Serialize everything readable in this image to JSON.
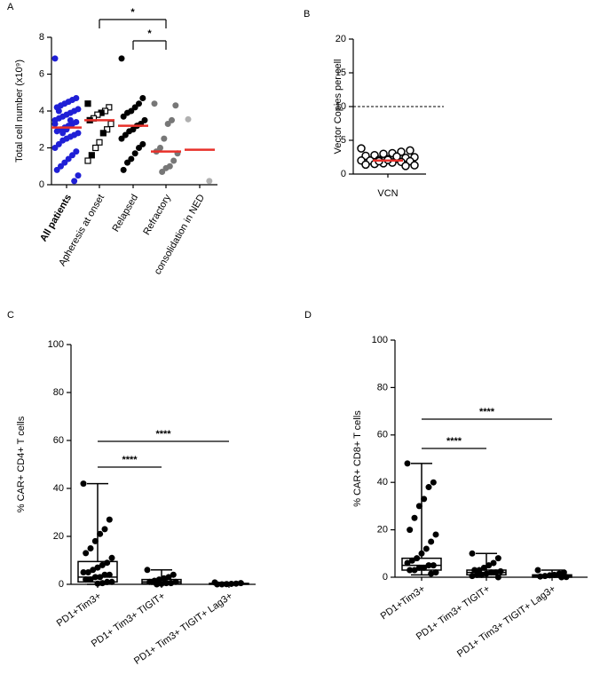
{
  "chart_data": [
    {
      "type": "dot",
      "panel": "A",
      "ylabel": "Total cell number (x10⁹)",
      "categories": [
        "All patients",
        "Apheresis at onset",
        "Relapsed",
        "Refractory",
        "consolidation in NED"
      ],
      "ylim": [
        0,
        8
      ],
      "yticks": [
        0,
        2,
        4,
        6,
        8
      ],
      "groups": [
        {
          "color": "#1f1fd6",
          "marker": "circle",
          "median": 3.1,
          "values": [
            6.85,
            4.7,
            4.6,
            4.5,
            4.4,
            4.3,
            4.2,
            4.1,
            4.0,
            3.9,
            3.8,
            3.7,
            3.6,
            3.5,
            3.4,
            3.3,
            3.2,
            3.1,
            3.0,
            2.9,
            2.8,
            2.7,
            2.6,
            2.5,
            2.4,
            2.2,
            2.0,
            1.8,
            1.6,
            1.4,
            1.2,
            1.0,
            0.8,
            0.5,
            0.2,
            3.5,
            3.0,
            2.8,
            4.0,
            3.3
          ]
        },
        {
          "color": "#000000",
          "marker": "square",
          "median": 3.5,
          "values": [
            4.4,
            4.2,
            4.0,
            3.9,
            3.8,
            3.6,
            3.5,
            3.3,
            3.0,
            2.8,
            2.3,
            2.0,
            1.6,
            1.3
          ]
        },
        {
          "color": "#000000",
          "marker": "circle",
          "median": 3.2,
          "values": [
            6.85,
            4.7,
            4.4,
            4.2,
            4.0,
            3.9,
            3.7,
            3.5,
            3.3,
            3.2,
            3.0,
            2.9,
            2.7,
            2.5,
            2.2,
            2.0,
            1.7,
            1.4,
            1.2,
            0.8
          ]
        },
        {
          "color": "#777777",
          "marker": "circle",
          "median": 1.8,
          "values": [
            4.4,
            4.3,
            3.5,
            3.3,
            2.5,
            2.0,
            1.8,
            1.7,
            1.3,
            1.0,
            0.9,
            0.7
          ]
        },
        {
          "color": "#b0b0b0",
          "marker": "circle",
          "median": 1.9,
          "values": [
            3.55,
            0.2
          ]
        }
      ],
      "median_color": "#e8302a",
      "brackets": [
        {
          "label": "*",
          "between": [
            "Apheresis at onset",
            "Refractory"
          ]
        },
        {
          "label": "*",
          "between": [
            "Relapsed",
            "Refractory"
          ]
        }
      ]
    },
    {
      "type": "dot",
      "panel": "B",
      "ylabel": "Vector Copies per cell",
      "categories": [
        "VCN"
      ],
      "ylim": [
        0,
        20
      ],
      "yticks": [
        0,
        5,
        10,
        15,
        20
      ],
      "reference_line": 10,
      "groups": [
        {
          "color": "#000000",
          "marker": "open-circle",
          "median": 2.0,
          "values": [
            3.8,
            3.5,
            3.3,
            3.1,
            3.0,
            2.8,
            2.7,
            2.5,
            2.4,
            2.3,
            2.2,
            2.1,
            2.0,
            2.0,
            1.9,
            1.8,
            1.7,
            1.6,
            1.5,
            1.4,
            1.3,
            1.2,
            2.6,
            2.1,
            1.9
          ]
        }
      ],
      "median_color": "#e8302a",
      "brackets": []
    },
    {
      "type": "box",
      "panel": "C",
      "ylabel": "% CAR+ CD4+ T cells",
      "categories": [
        "PD1+Tim3+",
        "PD1+ Tim3+ TIGIT+",
        "PD1+ Tim3+ TIGIT+ Lag3+"
      ],
      "ylim": [
        0,
        100
      ],
      "yticks": [
        0,
        20,
        40,
        60,
        80,
        100
      ],
      "groups": [
        {
          "box": {
            "min": 0,
            "q1": 1,
            "median": 3,
            "q3": 9.5,
            "max": 42
          },
          "values": [
            42,
            27,
            23,
            21,
            18,
            15,
            13,
            11,
            9,
            8,
            7,
            6,
            5,
            5,
            4,
            4,
            3,
            3,
            2,
            2,
            1,
            1,
            0.5,
            0.3
          ]
        },
        {
          "box": {
            "min": 0,
            "q1": 0.3,
            "median": 1,
            "q3": 2,
            "max": 6
          },
          "values": [
            6,
            4,
            3,
            2.5,
            2,
            1.5,
            1,
            1,
            0.5,
            0.5,
            0.2,
            0
          ]
        },
        {
          "box": {
            "min": 0,
            "q1": 0,
            "median": 0.2,
            "q3": 0.4,
            "max": 0.8
          },
          "values": [
            0.8,
            0.5,
            0.3,
            0.2,
            0.1,
            0,
            0
          ]
        }
      ],
      "brackets": [
        {
          "label": "****",
          "between": [
            "PD1+Tim3+",
            "PD1+ Tim3+ TIGIT+"
          ]
        },
        {
          "label": "****",
          "between": [
            "PD1+Tim3+",
            "PD1+ Tim3+ TIGIT+ Lag3+"
          ]
        }
      ]
    },
    {
      "type": "box",
      "panel": "D",
      "ylabel": "% CAR+ CD8+ T cells",
      "categories": [
        "PD1+Tim3+",
        "PD1+ Tim3+ TIGIT+",
        "PD1+ Tim3+ TIGIT+ Lag3+"
      ],
      "ylim": [
        0,
        100
      ],
      "yticks": [
        0,
        20,
        40,
        60,
        80,
        100
      ],
      "groups": [
        {
          "box": {
            "min": 1,
            "q1": 3,
            "median": 5,
            "q3": 8,
            "max": 48
          },
          "values": [
            48,
            40,
            38,
            33,
            30,
            25,
            20,
            18,
            15,
            12,
            10,
            8,
            7,
            6,
            5,
            5,
            4,
            4,
            3,
            3,
            2,
            1.5
          ]
        },
        {
          "box": {
            "min": 0,
            "q1": 1,
            "median": 2,
            "q3": 3,
            "max": 10
          },
          "values": [
            10,
            8,
            6,
            5,
            4,
            3,
            3,
            2.5,
            2,
            2,
            1.5,
            1,
            1,
            0.5,
            0
          ]
        },
        {
          "box": {
            "min": 0,
            "q1": 0,
            "median": 0.5,
            "q3": 1,
            "max": 3
          },
          "values": [
            3,
            2,
            1.5,
            1,
            0.8,
            0.5,
            0.3,
            0.1,
            0
          ]
        }
      ],
      "brackets": [
        {
          "label": "****",
          "between": [
            "PD1+Tim3+",
            "PD1+ Tim3+ TIGIT+"
          ]
        },
        {
          "label": "****",
          "between": [
            "PD1+Tim3+",
            "PD1+ Tim3+ TIGIT+ Lag3+"
          ]
        }
      ]
    }
  ]
}
